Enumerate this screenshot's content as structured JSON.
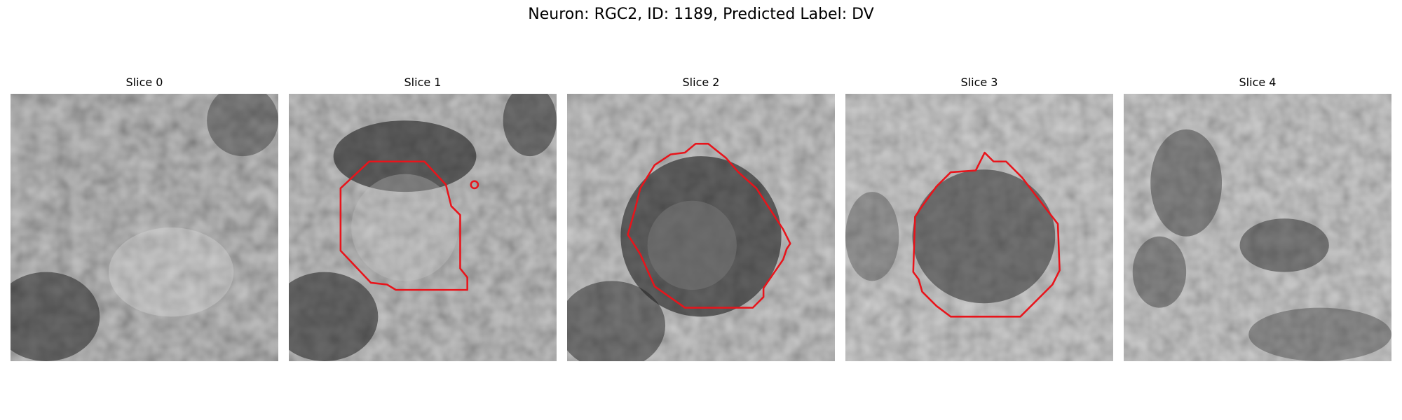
{
  "figure": {
    "title": "Neuron: RGC2, ID: 1189, Predicted Label: DV"
  },
  "contour_color": "#e8141b",
  "slices": [
    {
      "title": "Slice 0",
      "has_contour": false
    },
    {
      "title": "Slice 1",
      "has_contour": true
    },
    {
      "title": "Slice 2",
      "has_contour": true
    },
    {
      "title": "Slice 3",
      "has_contour": true
    },
    {
      "title": "Slice 4",
      "has_contour": false
    }
  ]
}
